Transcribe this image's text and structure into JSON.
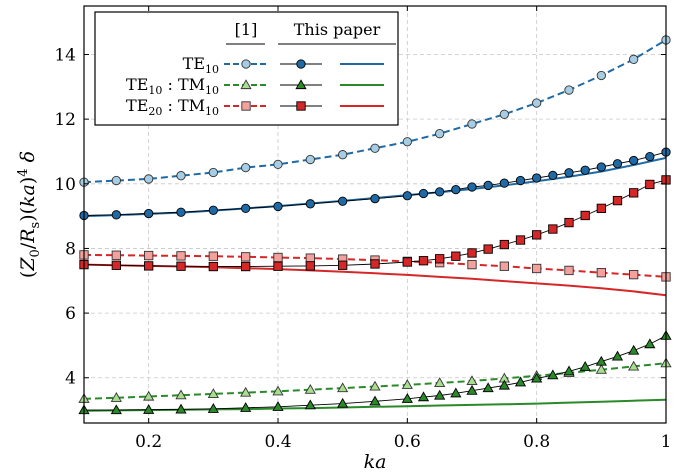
{
  "chart_data": {
    "type": "line",
    "xlabel": "ka",
    "ylabel": "(Z0/Rs)(ka)^4 δ",
    "xlim": [
      0.1,
      1.0
    ],
    "ylim": [
      2.6,
      15.5
    ],
    "xticks": [
      0.2,
      0.4,
      0.6,
      0.8,
      1.0
    ],
    "xtick_labels": [
      "0.2",
      "0.4",
      "0.6",
      "0.8",
      "1"
    ],
    "yticks": [
      4,
      6,
      8,
      10,
      12,
      14
    ],
    "ytick_labels": [
      "4",
      "6",
      "8",
      "10",
      "12",
      "14"
    ],
    "grid": true,
    "legend": {
      "placement": "top-left",
      "col_headers": [
        "[1]",
        "This paper"
      ],
      "rows": [
        {
          "label_main": "TE",
          "label_sub": "10",
          "label_main2": "",
          "label_sub2": ""
        },
        {
          "label_main": "TE",
          "label_sub": "10",
          "label_main2": " : TM",
          "label_sub2": "10"
        },
        {
          "label_main": "TE",
          "label_sub": "20",
          "label_main2": " : TM",
          "label_sub2": "10"
        }
      ]
    },
    "colors": {
      "blue": "#1f6aa5",
      "blue_light": "#a6cde3",
      "green": "#2a8a2a",
      "green_light": "#a9dd8f",
      "red": "#d62728",
      "red_light": "#f4a09c"
    },
    "x_ref": [
      0.1,
      0.15,
      0.2,
      0.25,
      0.3,
      0.35,
      0.4,
      0.45,
      0.5,
      0.55,
      0.6,
      0.65,
      0.7,
      0.75,
      0.8,
      0.85,
      0.9,
      0.95,
      1.0
    ],
    "x_markers": [
      0.1,
      0.15,
      0.2,
      0.25,
      0.3,
      0.35,
      0.4,
      0.45,
      0.5,
      0.55,
      0.6,
      0.625,
      0.65,
      0.675,
      0.7,
      0.725,
      0.75,
      0.775,
      0.8,
      0.825,
      0.85,
      0.875,
      0.9,
      0.925,
      0.95,
      0.975,
      1.0
    ],
    "x_curve": [
      0.1,
      0.15,
      0.2,
      0.25,
      0.3,
      0.35,
      0.4,
      0.45,
      0.5,
      0.55,
      0.6,
      0.65,
      0.7,
      0.75,
      0.8,
      0.85,
      0.9,
      0.95,
      1.0
    ],
    "series": [
      {
        "group": "TE10",
        "kind": "ref",
        "color": "#1f6aa5",
        "marker": "circle",
        "marker_fill": "#a6cde3",
        "dashed": true,
        "uses": "x_ref",
        "values": [
          10.05,
          10.1,
          10.15,
          10.25,
          10.35,
          10.5,
          10.6,
          10.75,
          10.9,
          11.1,
          11.3,
          11.55,
          11.85,
          12.15,
          12.5,
          12.9,
          13.35,
          13.85,
          14.45
        ]
      },
      {
        "group": "TE10",
        "kind": "ours_markers",
        "color": "#000000",
        "line_color": "#1f6aa5",
        "marker": "circle",
        "marker_fill": "#1f6aa5",
        "dashed": false,
        "uses": "x_markers",
        "values": [
          9.02,
          9.04,
          9.08,
          9.12,
          9.18,
          9.24,
          9.3,
          9.38,
          9.46,
          9.54,
          9.63,
          9.7,
          9.75,
          9.82,
          9.9,
          9.95,
          10.02,
          10.1,
          10.18,
          10.26,
          10.34,
          10.42,
          10.52,
          10.62,
          10.72,
          10.84,
          10.98
        ]
      },
      {
        "group": "TE10",
        "kind": "ours_curve",
        "color": "#1f6aa5",
        "dashed": false,
        "uses": "x_curve",
        "values": [
          9.0,
          9.03,
          9.07,
          9.11,
          9.17,
          9.24,
          9.31,
          9.39,
          9.47,
          9.56,
          9.65,
          9.74,
          9.84,
          9.95,
          10.08,
          10.22,
          10.38,
          10.58,
          10.8
        ]
      },
      {
        "group": "TE10:TM10",
        "kind": "ref",
        "color": "#2a8a2a",
        "marker": "triangle",
        "marker_fill": "#a9dd8f",
        "dashed": true,
        "uses": "x_ref",
        "values": [
          3.35,
          3.38,
          3.42,
          3.46,
          3.5,
          3.54,
          3.58,
          3.63,
          3.68,
          3.73,
          3.78,
          3.84,
          3.9,
          3.98,
          4.06,
          4.15,
          4.25,
          4.35,
          4.45
        ]
      },
      {
        "group": "TE10:TM10",
        "kind": "ours_markers",
        "color": "#000000",
        "line_color": "#2a8a2a",
        "marker": "triangle",
        "marker_fill": "#2a8a2a",
        "dashed": false,
        "uses": "x_markers",
        "values": [
          3.0,
          3.0,
          3.01,
          3.02,
          3.04,
          3.07,
          3.1,
          3.15,
          3.2,
          3.27,
          3.35,
          3.4,
          3.45,
          3.52,
          3.6,
          3.68,
          3.76,
          3.86,
          3.98,
          4.08,
          4.2,
          4.34,
          4.5,
          4.66,
          4.84,
          5.04,
          5.3
        ]
      },
      {
        "group": "TE10:TM10",
        "kind": "ours_curve",
        "color": "#2a8a2a",
        "dashed": false,
        "uses": "x_curve",
        "values": [
          2.98,
          2.99,
          3.0,
          3.01,
          3.02,
          3.03,
          3.05,
          3.06,
          3.08,
          3.1,
          3.12,
          3.14,
          3.16,
          3.18,
          3.2,
          3.23,
          3.26,
          3.29,
          3.32
        ]
      },
      {
        "group": "TE20:TM10",
        "kind": "ref",
        "color": "#d62728",
        "marker": "square",
        "marker_fill": "#f4a09c",
        "dashed": true,
        "uses": "x_ref",
        "values": [
          7.8,
          7.79,
          7.78,
          7.77,
          7.76,
          7.74,
          7.72,
          7.7,
          7.67,
          7.64,
          7.6,
          7.56,
          7.5,
          7.45,
          7.38,
          7.32,
          7.25,
          7.19,
          7.12
        ]
      },
      {
        "group": "TE20:TM10",
        "kind": "ours_markers",
        "color": "#000000",
        "line_color": "#d62728",
        "marker": "square",
        "marker_fill": "#d62728",
        "dashed": false,
        "uses": "x_markers",
        "values": [
          7.5,
          7.48,
          7.46,
          7.45,
          7.44,
          7.44,
          7.45,
          7.46,
          7.48,
          7.52,
          7.58,
          7.62,
          7.68,
          7.76,
          7.86,
          7.98,
          8.12,
          8.26,
          8.42,
          8.6,
          8.8,
          9.02,
          9.24,
          9.48,
          9.72,
          9.98,
          10.12
        ]
      },
      {
        "group": "TE20:TM10",
        "kind": "ours_curve",
        "color": "#d62728",
        "dashed": false,
        "uses": "x_curve",
        "values": [
          7.5,
          7.48,
          7.46,
          7.44,
          7.42,
          7.39,
          7.36,
          7.32,
          7.28,
          7.23,
          7.18,
          7.12,
          7.06,
          6.99,
          6.92,
          6.85,
          6.77,
          6.67,
          6.55
        ]
      }
    ]
  }
}
